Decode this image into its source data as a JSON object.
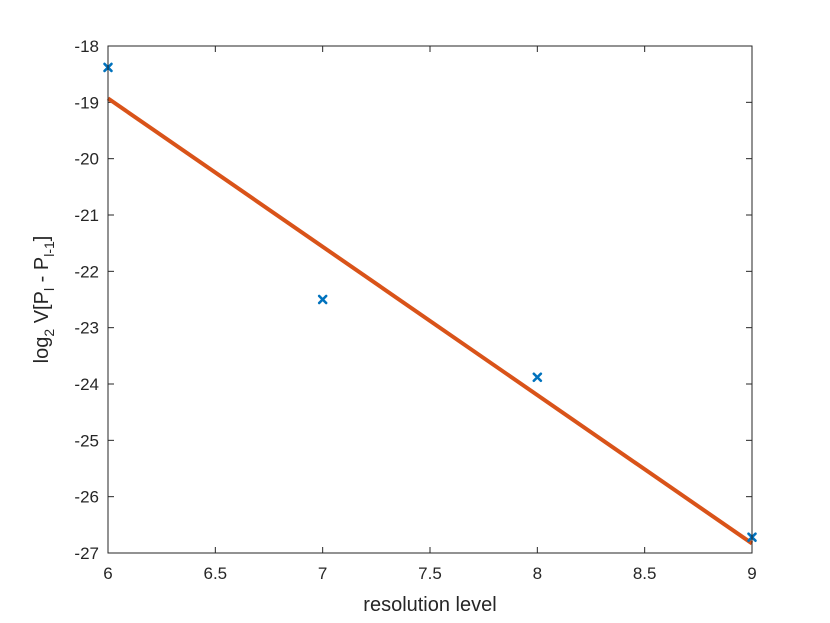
{
  "chart_data": {
    "type": "scatter",
    "xlabel": "resolution level",
    "ylabel": {
      "prefix": "log",
      "prefix_sub": "2",
      "mid": " V[P",
      "mid_sub": "l",
      "mid2": " - P",
      "mid2_sub": "l-1",
      "suffix": "]"
    },
    "xlim": [
      6,
      9
    ],
    "ylim": [
      -27,
      -18
    ],
    "xticks": [
      6,
      6.5,
      7,
      7.5,
      8,
      8.5,
      9
    ],
    "xtick_labels": [
      "6",
      "6.5",
      "7",
      "7.5",
      "8",
      "8.5",
      "9"
    ],
    "yticks": [
      -18,
      -19,
      -20,
      -21,
      -22,
      -23,
      -24,
      -25,
      -26,
      -27
    ],
    "ytick_labels": [
      "-18",
      "-19",
      "-20",
      "-21",
      "-22",
      "-23",
      "-24",
      "-25",
      "-26",
      "-27"
    ],
    "grid": false,
    "series": [
      {
        "type": "scatter",
        "marker": "x",
        "color": "#0072BD",
        "x": [
          6,
          7,
          8,
          9
        ],
        "y": [
          -18.38,
          -22.5,
          -23.88,
          -26.72
        ]
      },
      {
        "type": "line",
        "color": "#D95319",
        "x": [
          6,
          9
        ],
        "y": [
          -18.93,
          -26.83
        ]
      }
    ]
  }
}
